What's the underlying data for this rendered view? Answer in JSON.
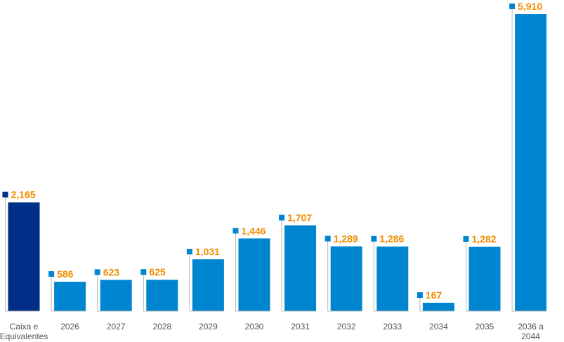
{
  "chart_data": {
    "type": "bar",
    "title": "",
    "xlabel": "",
    "ylabel": "",
    "ylim": [
      0,
      5910
    ],
    "grid": false,
    "legend": "none",
    "categories": [
      [
        "Caixa e",
        "Equivalentes"
      ],
      [
        "2026"
      ],
      [
        "2027"
      ],
      [
        "2028"
      ],
      [
        "2029"
      ],
      [
        "2030"
      ],
      [
        "2031"
      ],
      [
        "2032"
      ],
      [
        "2033"
      ],
      [
        "2034"
      ],
      [
        "2035"
      ],
      [
        "2036 a",
        "2044"
      ]
    ],
    "values": [
      2165,
      586,
      623,
      625,
      1031,
      1446,
      1707,
      1289,
      1286,
      167,
      1282,
      5910
    ],
    "value_labels": [
      "2,165",
      "586",
      "623",
      "625",
      "1,031",
      "1,446",
      "1,707",
      "1,289",
      "1,286",
      "167",
      "1,282",
      "5,910"
    ],
    "bar_colors": [
      "#002F87",
      "#0086D1",
      "#0086D1",
      "#0086D1",
      "#0086D1",
      "#0086D1",
      "#0086D1",
      "#0086D1",
      "#0086D1",
      "#0086D1",
      "#0086D1",
      "#0086D1"
    ],
    "label_color": "#F28C00",
    "leader_color": "#B8B8B8"
  }
}
